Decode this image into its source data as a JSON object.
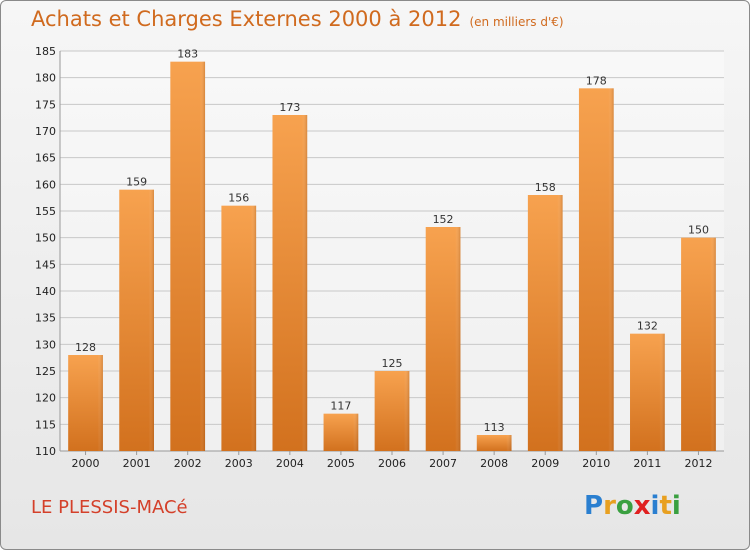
{
  "title": "Achats et Charges Externes 2000 à 2012",
  "unit_note": "(en milliers d'€)",
  "place": "LE PLESSIS-MACé",
  "logo": {
    "letters": [
      "P",
      "r",
      "o",
      "x",
      "i",
      "t",
      "i"
    ],
    "colors": [
      "#2a7fd0",
      "#e8a020",
      "#3aa040",
      "#e02020",
      "#2a7fd0",
      "#e8a020",
      "#3aa040"
    ]
  },
  "colors": {
    "bar_top": "#f7a24f",
    "bar_bottom": "#d2711e",
    "grid": "#c8c8c8"
  },
  "chart_data": {
    "type": "bar",
    "categories": [
      "2000",
      "2001",
      "2002",
      "2003",
      "2004",
      "2005",
      "2006",
      "2007",
      "2008",
      "2009",
      "2010",
      "2011",
      "2012"
    ],
    "values": [
      128,
      159,
      183,
      156,
      173,
      117,
      125,
      152,
      113,
      158,
      178,
      132,
      150
    ],
    "ylim": [
      110,
      185
    ],
    "yticks": [
      110,
      115,
      120,
      125,
      130,
      135,
      140,
      145,
      150,
      155,
      160,
      165,
      170,
      175,
      180,
      185
    ],
    "grid": true,
    "title": "Achats et Charges Externes 2000 à 2012",
    "xlabel": "",
    "ylabel": ""
  }
}
